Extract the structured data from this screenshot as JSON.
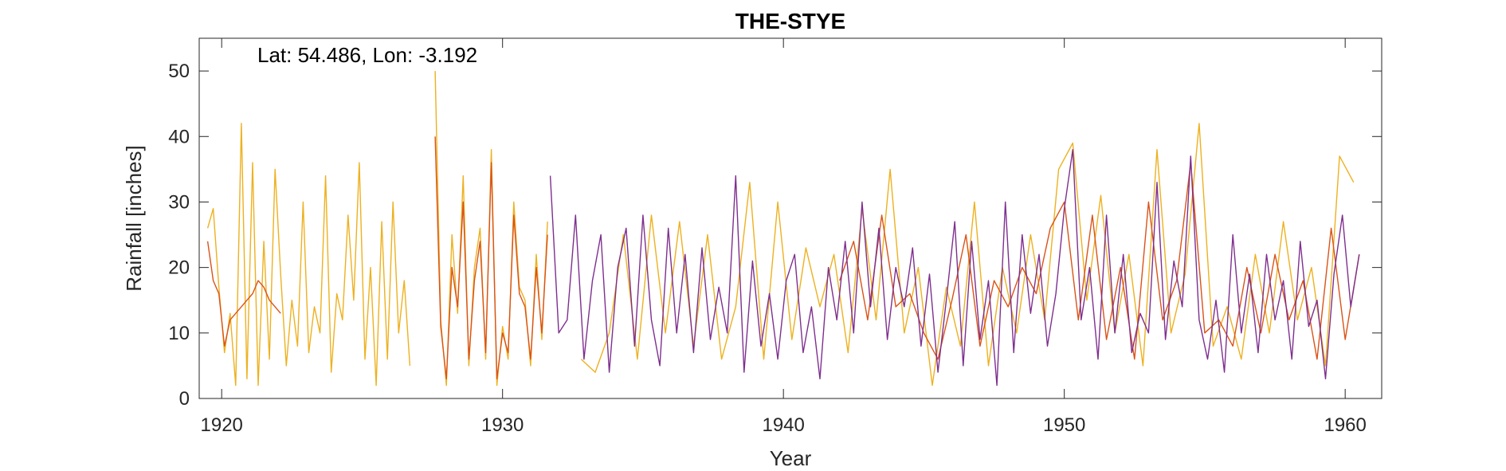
{
  "chart_data": {
    "type": "line",
    "title": "THE-STYE",
    "annotation": "Lat: 54.486, Lon: -3.192",
    "xlabel": "Year",
    "ylabel": "Rainfall [inches]",
    "xlim": [
      1919.2,
      1961.3
    ],
    "ylim": [
      0,
      55
    ],
    "xticks": [
      1920,
      1930,
      1940,
      1950,
      1960
    ],
    "yticks": [
      0,
      10,
      20,
      30,
      40,
      50
    ],
    "grid": false,
    "series": [
      {
        "color": "#EDB120",
        "segments": [
          {
            "x": [
              1919.5,
              1919.7,
              1919.9,
              1920.1,
              1920.3,
              1920.5,
              1920.7,
              1920.9,
              1921.1,
              1921.3,
              1921.5,
              1921.7,
              1921.9,
              1922.1,
              1922.3,
              1922.5,
              1922.7,
              1922.9,
              1923.1,
              1923.3,
              1923.5,
              1923.7,
              1923.9,
              1924.1,
              1924.3,
              1924.5,
              1924.7,
              1924.9,
              1925.1,
              1925.3,
              1925.5,
              1925.7,
              1925.9,
              1926.1,
              1926.3,
              1926.5,
              1926.7
            ],
            "y": [
              26,
              29,
              17,
              7,
              13,
              2,
              42,
              3,
              36,
              2,
              24,
              6,
              35,
              19,
              5,
              15,
              8,
              30,
              7,
              14,
              10,
              34,
              4,
              16,
              12,
              28,
              15,
              36,
              6,
              20,
              2,
              27,
              6,
              30,
              10,
              18,
              5
            ]
          },
          {
            "x": [
              1927.6,
              1927.8,
              1928.0,
              1928.2,
              1928.4,
              1928.6,
              1928.8,
              1929.0,
              1929.2,
              1929.4,
              1929.6,
              1929.8,
              1930.0,
              1930.2,
              1930.4,
              1930.6,
              1930.8,
              1931.0,
              1931.2,
              1931.4,
              1931.6
            ],
            "y": [
              50,
              12,
              2,
              25,
              13,
              34,
              5,
              20,
              26,
              6,
              38,
              2,
              11,
              6,
              30,
              17,
              15,
              5,
              22,
              9,
              27
            ]
          },
          {
            "x": [
              1932.8,
              1933.3,
              1933.8,
              1934.3,
              1934.8,
              1935.3,
              1935.8,
              1936.3,
              1936.8,
              1937.3,
              1937.8,
              1938.3,
              1938.8,
              1939.3,
              1939.8,
              1940.3,
              1940.8,
              1941.3,
              1941.8,
              1942.3,
              1942.8,
              1943.3,
              1943.8,
              1944.3,
              1944.8,
              1945.3,
              1945.8,
              1946.3,
              1946.8,
              1947.3,
              1947.8,
              1948.3,
              1948.8,
              1949.3,
              1949.8,
              1950.3,
              1950.8,
              1951.3,
              1951.8,
              1952.3,
              1952.8,
              1953.3,
              1953.8,
              1954.3,
              1954.8,
              1955.3,
              1955.8,
              1956.3,
              1956.8,
              1957.3,
              1957.8,
              1958.3,
              1958.8,
              1959.3,
              1959.8,
              1960.3
            ],
            "y": [
              6,
              4,
              10,
              25,
              6,
              28,
              10,
              27,
              8,
              25,
              6,
              14,
              33,
              6,
              30,
              9,
              23,
              14,
              22,
              7,
              29,
              12,
              35,
              10,
              20,
              2,
              17,
              8,
              30,
              5,
              20,
              10,
              25,
              12,
              35,
              39,
              15,
              31,
              10,
              22,
              5,
              38,
              10,
              19,
              42,
              8,
              14,
              6,
              22,
              10,
              27,
              12,
              20,
              5,
              37,
              33
            ]
          }
        ]
      },
      {
        "color": "#D95319",
        "segments": [
          {
            "x": [
              1919.5,
              1919.7,
              1919.9,
              1920.1,
              1920.3,
              1920.5,
              1920.7,
              1920.9,
              1921.1,
              1921.3,
              1921.5,
              1921.7,
              1921.9,
              1922.1
            ],
            "y": [
              24,
              18,
              16,
              8,
              12,
              13,
              14,
              15,
              16,
              18,
              17,
              15,
              14,
              13
            ]
          },
          {
            "x": [
              1927.6,
              1927.8,
              1928.0,
              1928.2,
              1928.4,
              1928.6,
              1928.8,
              1929.0,
              1929.2,
              1929.4,
              1929.6,
              1929.8,
              1930.0,
              1930.2,
              1930.4,
              1930.6,
              1930.8,
              1931.0,
              1931.2,
              1931.4,
              1931.6
            ],
            "y": [
              40,
              11,
              3,
              20,
              14,
              30,
              6,
              18,
              24,
              7,
              36,
              3,
              10,
              7,
              28,
              16,
              14,
              6,
              20,
              10,
              25
            ]
          },
          {
            "x": [
              1942.0,
              1942.5,
              1943.0,
              1943.5,
              1944.0,
              1944.5,
              1945.0,
              1945.5,
              1946.0,
              1946.5,
              1947.0,
              1947.5,
              1948.0,
              1948.5,
              1949.0,
              1949.5,
              1950.0,
              1950.5,
              1951.0,
              1951.5,
              1952.0,
              1952.5,
              1953.0,
              1953.5,
              1954.0,
              1954.5,
              1955.0,
              1955.5,
              1956.0,
              1956.5,
              1957.0,
              1957.5,
              1958.0,
              1958.5,
              1959.0,
              1959.5,
              1960.0,
              1960.5
            ],
            "y": [
              18,
              24,
              12,
              28,
              14,
              16,
              10,
              6,
              15,
              25,
              8,
              18,
              14,
              20,
              16,
              26,
              30,
              12,
              28,
              9,
              20,
              6,
              30,
              12,
              18,
              36,
              10,
              12,
              8,
              20,
              10,
              22,
              12,
              18,
              6,
              26,
              9,
              22
            ]
          }
        ]
      },
      {
        "color": "#7E2F8E",
        "segments": [
          {
            "x": [
              1931.7,
              1932.0,
              1932.3,
              1932.6,
              1932.9,
              1933.2,
              1933.5,
              1933.8,
              1934.1,
              1934.4,
              1934.7,
              1935.0,
              1935.3,
              1935.6,
              1935.9,
              1936.2,
              1936.5,
              1936.8,
              1937.1,
              1937.4,
              1937.7,
              1938.0,
              1938.3,
              1938.6,
              1938.9,
              1939.2,
              1939.5,
              1939.8,
              1940.1,
              1940.4,
              1940.7,
              1941.0,
              1941.3,
              1941.6,
              1941.9,
              1942.2,
              1942.5,
              1942.8,
              1943.1,
              1943.4,
              1943.7,
              1944.0,
              1944.3,
              1944.6,
              1944.9,
              1945.2,
              1945.5,
              1945.8,
              1946.1,
              1946.4,
              1946.7,
              1947.0,
              1947.3,
              1947.6,
              1947.9,
              1948.2,
              1948.5,
              1948.8,
              1949.1,
              1949.4,
              1949.7,
              1950.0,
              1950.3,
              1950.6,
              1950.9,
              1951.2,
              1951.5,
              1951.8,
              1952.1,
              1952.4,
              1952.7,
              1953.0,
              1953.3,
              1953.6,
              1953.9,
              1954.2,
              1954.5,
              1954.8,
              1955.1,
              1955.4,
              1955.7,
              1956.0,
              1956.3,
              1956.6,
              1956.9,
              1957.2,
              1957.5,
              1957.8,
              1958.1,
              1958.4,
              1958.7,
              1959.0,
              1959.3,
              1959.6,
              1959.9,
              1960.2,
              1960.5
            ],
            "y": [
              34,
              10,
              12,
              28,
              6,
              18,
              25,
              4,
              20,
              26,
              8,
              28,
              12,
              5,
              26,
              10,
              22,
              7,
              23,
              9,
              17,
              10,
              34,
              4,
              21,
              8,
              16,
              6,
              18,
              22,
              7,
              14,
              3,
              20,
              12,
              24,
              10,
              30,
              14,
              26,
              9,
              20,
              14,
              23,
              8,
              19,
              4,
              15,
              27,
              5,
              24,
              9,
              18,
              2,
              30,
              7,
              25,
              13,
              22,
              8,
              16,
              29,
              38,
              12,
              20,
              6,
              28,
              10,
              22,
              7,
              13,
              10,
              33,
              9,
              21,
              14,
              37,
              12,
              6,
              15,
              4,
              25,
              10,
              19,
              7,
              22,
              12,
              18,
              6,
              24,
              11,
              15,
              3,
              19,
              28,
              14,
              22
            ]
          }
        ]
      }
    ]
  }
}
